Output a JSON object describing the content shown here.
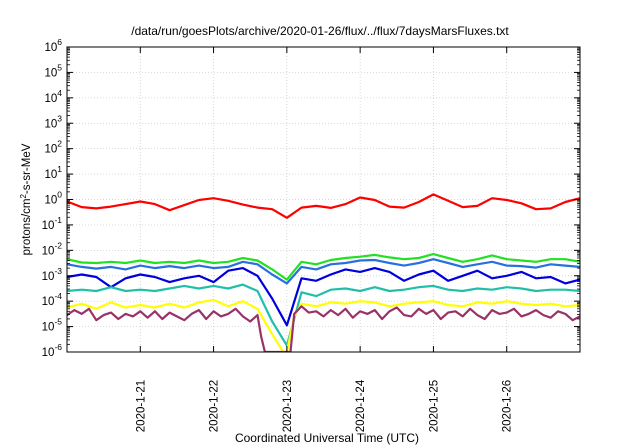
{
  "chart_data": {
    "type": "line",
    "title": "/data/run/goesPlots/archive/2020-01-26/flux/../flux/7daysMarsFluxes.txt",
    "xlabel": "Coordinated Universal Time (UTC)",
    "ylabel": "protons/cm2-s-sr-MeV",
    "ylabel_main": "protons/cm",
    "ylabel_sup": "2",
    "ylabel_rest": "-s-sr-MeV",
    "y_scale": "log",
    "ylim": [
      1e-06,
      1000000.0
    ],
    "y_ticks": [
      {
        "base": "10",
        "exp": "-6",
        "v": -6
      },
      {
        "base": "10",
        "exp": "-5",
        "v": -5
      },
      {
        "base": "10",
        "exp": "-4",
        "v": -4
      },
      {
        "base": "10",
        "exp": "-3",
        "v": -3
      },
      {
        "base": "10",
        "exp": "-2",
        "v": -2
      },
      {
        "base": "10",
        "exp": "-1",
        "v": -1
      },
      {
        "base": "10",
        "exp": "0",
        "v": 0
      },
      {
        "base": "10",
        "exp": "1",
        "v": 1
      },
      {
        "base": "10",
        "exp": "2",
        "v": 2
      },
      {
        "base": "10",
        "exp": "3",
        "v": 3
      },
      {
        "base": "10",
        "exp": "4",
        "v": 4
      },
      {
        "base": "10",
        "exp": "5",
        "v": 5
      },
      {
        "base": "10",
        "exp": "6",
        "v": 6
      }
    ],
    "xlim": [
      0,
      7
    ],
    "x_ticks": [
      {
        "label": "2020-1-21",
        "v": 1
      },
      {
        "label": "2020-1-22",
        "v": 2
      },
      {
        "label": "2020-1-23",
        "v": 3
      },
      {
        "label": "2020-1-24",
        "v": 4
      },
      {
        "label": "2020-1-25",
        "v": 5
      },
      {
        "label": "2020-1-26",
        "v": 6
      }
    ],
    "grid": true,
    "legend": "none",
    "series": [
      {
        "color": "#ff0000",
        "x": [
          0,
          0.2,
          0.4,
          0.6,
          0.8,
          1.0,
          1.2,
          1.4,
          1.6,
          1.8,
          2.0,
          2.2,
          2.4,
          2.6,
          2.8,
          3.0,
          3.2,
          3.4,
          3.6,
          3.8,
          4.0,
          4.2,
          4.4,
          4.6,
          4.8,
          5.0,
          5.2,
          5.4,
          5.6,
          5.8,
          6.0,
          6.2,
          6.4,
          6.6,
          6.8,
          7.0
        ],
        "y": [
          -0.08,
          -0.3,
          -0.35,
          -0.28,
          -0.18,
          -0.08,
          -0.18,
          -0.42,
          -0.22,
          -0.02,
          0.05,
          -0.05,
          -0.2,
          -0.32,
          -0.38,
          -0.72,
          -0.32,
          -0.25,
          -0.33,
          -0.18,
          0.08,
          -0.02,
          -0.28,
          -0.32,
          -0.1,
          0.2,
          -0.05,
          -0.3,
          -0.25,
          0.05,
          -0.02,
          -0.15,
          -0.38,
          -0.35,
          -0.1,
          0.05
        ]
      },
      {
        "color": "#22e022",
        "x": [
          0,
          0.2,
          0.4,
          0.6,
          0.8,
          1.0,
          1.2,
          1.4,
          1.6,
          1.8,
          2.0,
          2.2,
          2.4,
          2.6,
          2.8,
          3.0,
          3.2,
          3.4,
          3.6,
          3.8,
          4.0,
          4.2,
          4.4,
          4.6,
          4.8,
          5.0,
          5.2,
          5.4,
          5.6,
          5.8,
          6.0,
          6.2,
          6.4,
          6.6,
          6.8,
          7.0
        ],
        "y": [
          -2.35,
          -2.48,
          -2.5,
          -2.45,
          -2.5,
          -2.4,
          -2.5,
          -2.45,
          -2.5,
          -2.4,
          -2.5,
          -2.45,
          -2.3,
          -2.4,
          -2.75,
          -3.15,
          -2.45,
          -2.55,
          -2.38,
          -2.3,
          -2.25,
          -2.18,
          -2.28,
          -2.35,
          -2.3,
          -2.15,
          -2.3,
          -2.45,
          -2.35,
          -2.2,
          -2.35,
          -2.4,
          -2.45,
          -2.35,
          -2.35,
          -2.45
        ]
      },
      {
        "color": "#2a6fe0",
        "x": [
          0,
          0.2,
          0.4,
          0.6,
          0.8,
          1.0,
          1.2,
          1.4,
          1.6,
          1.8,
          2.0,
          2.2,
          2.4,
          2.6,
          2.8,
          3.0,
          3.2,
          3.4,
          3.6,
          3.8,
          4.0,
          4.2,
          4.4,
          4.6,
          4.8,
          5.0,
          5.2,
          5.4,
          5.6,
          5.8,
          6.0,
          6.2,
          6.4,
          6.6,
          6.8,
          7.0
        ],
        "y": [
          -2.55,
          -2.65,
          -2.72,
          -2.65,
          -2.75,
          -2.6,
          -2.7,
          -2.62,
          -2.7,
          -2.6,
          -2.7,
          -2.65,
          -2.45,
          -2.55,
          -2.95,
          -3.3,
          -2.65,
          -2.75,
          -2.55,
          -2.5,
          -2.4,
          -2.38,
          -2.5,
          -2.6,
          -2.5,
          -2.35,
          -2.5,
          -2.65,
          -2.55,
          -2.45,
          -2.6,
          -2.62,
          -2.68,
          -2.55,
          -2.6,
          -2.65
        ]
      },
      {
        "color": "#0000dd",
        "x": [
          0,
          0.2,
          0.4,
          0.6,
          0.8,
          1.0,
          1.2,
          1.4,
          1.6,
          1.8,
          2.0,
          2.2,
          2.4,
          2.6,
          2.8,
          3.0,
          3.2,
          3.4,
          3.6,
          3.8,
          4.0,
          4.2,
          4.4,
          4.6,
          4.8,
          5.0,
          5.2,
          5.4,
          5.6,
          5.8,
          6.0,
          6.2,
          6.4,
          6.6,
          6.8,
          7.0
        ],
        "y": [
          -3.05,
          -2.95,
          -3.05,
          -3.45,
          -3.1,
          -2.95,
          -3.05,
          -3.25,
          -3.1,
          -3.0,
          -3.25,
          -2.8,
          -2.7,
          -3.0,
          -3.9,
          -4.95,
          -3.1,
          -3.2,
          -2.95,
          -2.75,
          -2.85,
          -2.7,
          -2.85,
          -3.2,
          -2.95,
          -2.8,
          -3.2,
          -3.0,
          -2.8,
          -3.1,
          -3.0,
          -2.85,
          -3.1,
          -3.05,
          -3.3,
          -3.15
        ]
      },
      {
        "color": "#20c0a8",
        "x": [
          0,
          0.2,
          0.4,
          0.6,
          0.8,
          1.0,
          1.2,
          1.4,
          1.6,
          1.8,
          2.0,
          2.2,
          2.4,
          2.6,
          2.8,
          3.0,
          3.2,
          3.4,
          3.6,
          3.8,
          4.0,
          4.2,
          4.4,
          4.6,
          4.8,
          5.0,
          5.2,
          5.4,
          5.6,
          5.8,
          6.0,
          6.2,
          6.4,
          6.6,
          6.8,
          7.0
        ],
        "y": [
          -3.6,
          -3.55,
          -3.6,
          -3.45,
          -3.6,
          -3.55,
          -3.6,
          -3.5,
          -3.4,
          -3.5,
          -3.4,
          -3.5,
          -3.35,
          -3.6,
          -4.8,
          -5.75,
          -3.65,
          -3.8,
          -3.55,
          -3.5,
          -3.6,
          -3.45,
          -3.6,
          -3.55,
          -3.45,
          -3.4,
          -3.55,
          -3.6,
          -3.5,
          -3.55,
          -3.45,
          -3.5,
          -3.6,
          -3.55,
          -3.55,
          -3.6
        ]
      },
      {
        "color": "#ffff00",
        "x": [
          0,
          0.2,
          0.4,
          0.6,
          0.8,
          1.0,
          1.2,
          1.4,
          1.6,
          1.8,
          2.0,
          2.2,
          2.4,
          2.6,
          2.8,
          2.95,
          3.0,
          3.1,
          3.2,
          3.4,
          3.6,
          3.8,
          4.0,
          4.2,
          4.4,
          4.6,
          4.8,
          5.0,
          5.2,
          5.4,
          5.6,
          5.8,
          6.0,
          6.2,
          6.4,
          6.6,
          6.8,
          7.0
        ],
        "y": [
          -4.25,
          -4.1,
          -4.3,
          -4.05,
          -4.25,
          -4.15,
          -4.25,
          -4.1,
          -4.25,
          -4.05,
          -3.95,
          -4.2,
          -4.0,
          -4.3,
          -5.3,
          -6.0,
          -6.0,
          -4.6,
          -4.1,
          -4.2,
          -4.05,
          -4.1,
          -4.0,
          -4.05,
          -4.2,
          -4.1,
          -4.05,
          -4.0,
          -4.15,
          -4.2,
          -4.05,
          -4.1,
          -4.0,
          -4.1,
          -4.15,
          -4.1,
          -4.2,
          -4.15
        ]
      },
      {
        "color": "#993366",
        "x": [
          0,
          0.1,
          0.2,
          0.3,
          0.4,
          0.5,
          0.6,
          0.7,
          0.8,
          0.9,
          1.0,
          1.1,
          1.2,
          1.3,
          1.4,
          1.5,
          1.6,
          1.7,
          1.8,
          1.9,
          2.0,
          2.1,
          2.2,
          2.3,
          2.4,
          2.5,
          2.6,
          2.65,
          2.7,
          3.05,
          3.1,
          3.2,
          3.3,
          3.4,
          3.5,
          3.6,
          3.7,
          3.8,
          3.9,
          4.0,
          4.1,
          4.2,
          4.3,
          4.4,
          4.5,
          4.6,
          4.7,
          4.8,
          4.9,
          5.0,
          5.1,
          5.2,
          5.3,
          5.4,
          5.5,
          5.6,
          5.7,
          5.8,
          5.9,
          6.0,
          6.1,
          6.2,
          6.3,
          6.4,
          6.5,
          6.6,
          6.7,
          6.8,
          6.9,
          7.0
        ],
        "y": [
          -4.55,
          -4.35,
          -4.5,
          -4.3,
          -4.75,
          -4.55,
          -4.45,
          -4.7,
          -4.5,
          -4.6,
          -4.4,
          -4.65,
          -4.4,
          -4.7,
          -4.45,
          -4.6,
          -4.75,
          -4.5,
          -4.35,
          -4.7,
          -4.4,
          -4.6,
          -4.5,
          -4.3,
          -4.6,
          -4.8,
          -4.55,
          -5.4,
          -6.0,
          -6.0,
          -4.5,
          -4.2,
          -4.45,
          -4.4,
          -4.6,
          -4.35,
          -4.55,
          -4.3,
          -4.65,
          -4.4,
          -4.5,
          -4.35,
          -4.7,
          -4.4,
          -4.25,
          -4.55,
          -4.6,
          -4.3,
          -4.5,
          -4.35,
          -4.7,
          -4.45,
          -4.4,
          -4.6,
          -4.3,
          -4.55,
          -4.7,
          -4.35,
          -4.5,
          -4.45,
          -4.3,
          -4.6,
          -4.5,
          -4.35,
          -4.55,
          -4.65,
          -4.4,
          -4.5,
          -4.75,
          -4.6
        ]
      }
    ]
  }
}
